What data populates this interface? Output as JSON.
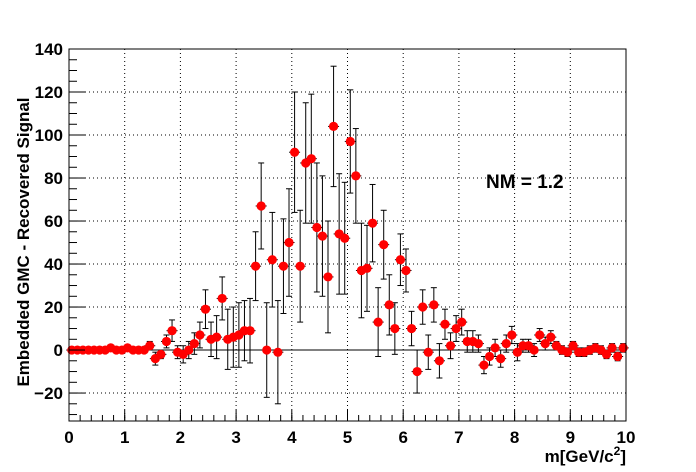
{
  "chart_data": {
    "type": "scatter",
    "title": "",
    "xlabel": "m[GeV/c",
    "xlabel_sup": "2",
    "xlabel_close": "]",
    "ylabel": "Embedded GMC - Recovered Signal",
    "xlim": [
      0,
      10
    ],
    "ylim": [
      -33,
      140
    ],
    "x_ticks": [
      "0",
      "1",
      "2",
      "3",
      "4",
      "5",
      "6",
      "7",
      "8",
      "9",
      "10"
    ],
    "y_ticks": [
      "−20",
      "0",
      "20",
      "40",
      "60",
      "80",
      "100",
      "120",
      "140"
    ],
    "grid": true,
    "zero_line": true,
    "annotation": "NM = 1.2",
    "marker_color": "#ff0000",
    "series": [
      {
        "x": [
          0.05,
          0.15,
          0.25,
          0.35,
          0.45,
          0.55,
          0.65,
          0.75,
          0.85,
          0.95,
          1.05,
          1.15,
          1.25,
          1.35,
          1.45,
          1.55,
          1.65,
          1.75,
          1.85,
          1.95,
          2.05,
          2.15,
          2.25,
          2.35,
          2.45,
          2.55,
          2.65,
          2.75,
          2.85,
          2.95,
          3.05,
          3.15,
          3.25,
          3.35,
          3.45,
          3.55,
          3.65,
          3.75,
          3.85,
          3.95,
          4.05,
          4.15,
          4.25,
          4.35,
          4.45,
          4.55,
          4.65,
          4.75,
          4.85,
          4.95,
          5.05,
          5.15,
          5.25,
          5.35,
          5.45,
          5.55,
          5.65,
          5.75,
          5.85,
          5.95,
          6.05,
          6.15,
          6.25,
          6.35,
          6.45,
          6.55,
          6.65,
          6.75,
          6.85,
          6.95,
          7.05,
          7.15,
          7.25,
          7.35,
          7.45,
          7.55,
          7.65,
          7.75,
          7.85,
          7.95,
          8.05,
          8.15,
          8.25,
          8.35,
          8.45,
          8.55,
          8.65,
          8.75,
          8.85,
          8.95,
          9.05,
          9.15,
          9.25,
          9.35,
          9.45,
          9.55,
          9.65,
          9.75,
          9.85,
          9.95
        ],
        "y": [
          0,
          0,
          0,
          0,
          0,
          0,
          0,
          1,
          0,
          0,
          1,
          0,
          0,
          0,
          2,
          -4,
          -2,
          4,
          9,
          -1,
          -2,
          0,
          3,
          7,
          19,
          5,
          6,
          24,
          5,
          6,
          7,
          9,
          9,
          39,
          67,
          0,
          42,
          -1,
          39,
          50,
          92,
          39,
          87,
          89,
          57,
          53,
          34,
          104,
          54,
          52,
          97,
          81,
          37,
          38,
          59,
          13,
          49,
          21,
          10,
          42,
          37,
          10,
          -10,
          20,
          -1,
          21,
          -5,
          12,
          2,
          10,
          13,
          4,
          4,
          3,
          -7,
          -3,
          1,
          -4,
          3,
          7,
          -1,
          2,
          2,
          0,
          7,
          3,
          6,
          2,
          0,
          -1,
          2,
          -1,
          -1,
          0,
          1,
          0,
          -2,
          1,
          -3,
          1
        ],
        "err": [
          0,
          0,
          0,
          0,
          0,
          0,
          0,
          0,
          0,
          0,
          0,
          0,
          0,
          0,
          2,
          3,
          2,
          3,
          5,
          3,
          4,
          4,
          5,
          6,
          9,
          8,
          10,
          10,
          14,
          14,
          15,
          14,
          15,
          16,
          20,
          22,
          22,
          24,
          22,
          25,
          28,
          26,
          28,
          30,
          30,
          28,
          26,
          28,
          28,
          26,
          24,
          22,
          22,
          20,
          18,
          16,
          16,
          14,
          12,
          12,
          10,
          8,
          10,
          8,
          8,
          8,
          8,
          7,
          6,
          6,
          6,
          5,
          5,
          4,
          4,
          4,
          4,
          4,
          4,
          4,
          4,
          3,
          3,
          3,
          3,
          3,
          3,
          2,
          2,
          2,
          2,
          2,
          2,
          2,
          2,
          2,
          2,
          2,
          2,
          2
        ]
      }
    ]
  }
}
